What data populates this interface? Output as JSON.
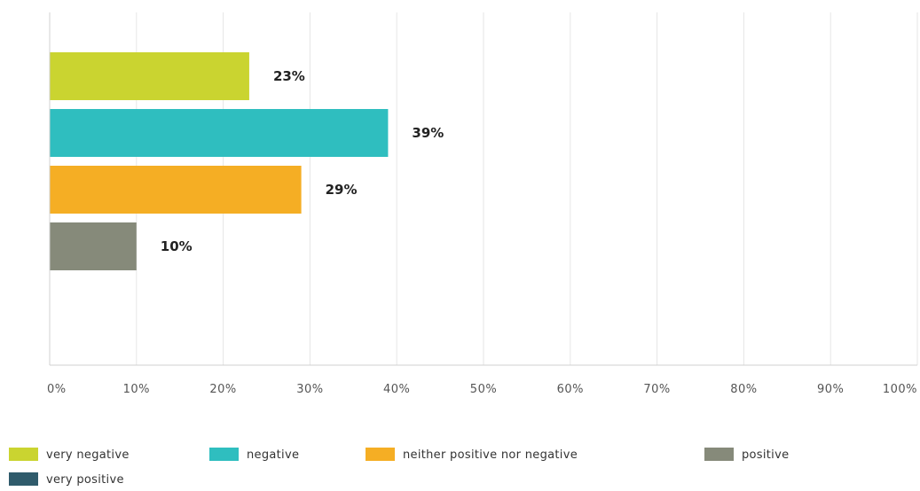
{
  "chart_data": {
    "type": "bar",
    "orientation": "horizontal",
    "title": "",
    "xlabel": "",
    "ylabel": "",
    "xlim": [
      0,
      100
    ],
    "x_ticks": [
      "0%",
      "10%",
      "20%",
      "30%",
      "40%",
      "50%",
      "60%",
      "70%",
      "80%",
      "90%",
      "100%"
    ],
    "grid": true,
    "legend_placement": "bottom",
    "categories": [
      "very negative",
      "negative",
      "neither positive nor negative",
      "positive",
      "very positive"
    ],
    "values": [
      23,
      39,
      29,
      10,
      0
    ],
    "data_labels": [
      "23%",
      "39%",
      "29%",
      "10%",
      ""
    ],
    "colors": [
      "#cad430",
      "#2fbebf",
      "#f5ae24",
      "#868a7a",
      "#2f5b6b"
    ],
    "legend": [
      {
        "name": "very negative",
        "color": "#cad430"
      },
      {
        "name": "negative",
        "color": "#2fbebf"
      },
      {
        "name": "neither positive nor negative",
        "color": "#f5ae24"
      },
      {
        "name": "positive",
        "color": "#868a7a"
      },
      {
        "name": "very positive",
        "color": "#2f5b6b"
      }
    ]
  }
}
